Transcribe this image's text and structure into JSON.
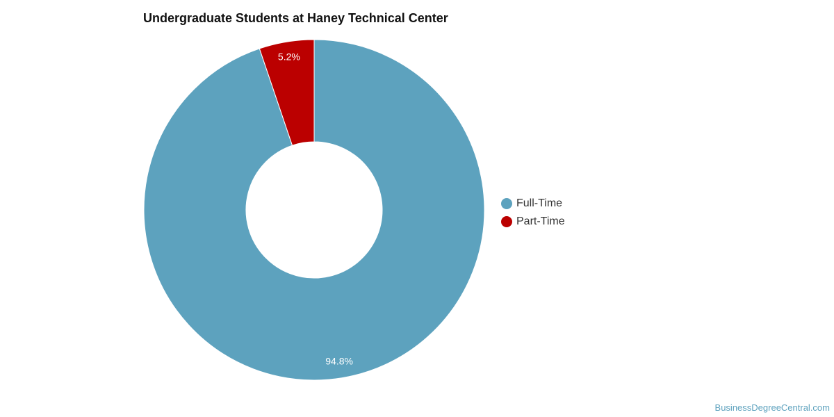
{
  "chart_data": {
    "type": "pie",
    "title": "Undergraduate Students at Haney Technical Center",
    "slices": [
      {
        "label": "Full-Time",
        "value": 94.8,
        "display": "94.8%",
        "color": "#5da2be"
      },
      {
        "label": "Part-Time",
        "value": 5.2,
        "display": "5.2%",
        "color": "#bb0000"
      }
    ],
    "donut": true,
    "legend_position": "right"
  },
  "watermark": "BusinessDegreeCentral.com"
}
